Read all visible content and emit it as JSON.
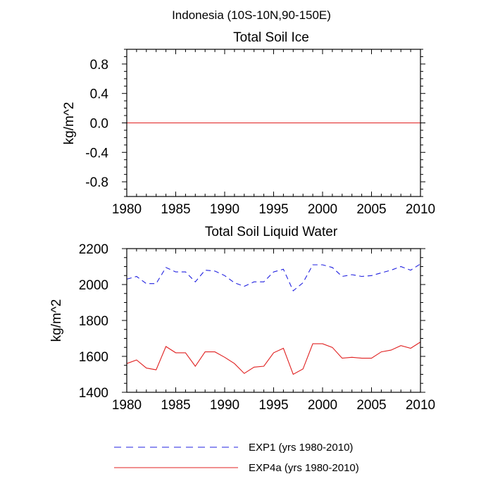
{
  "figure_title": "Indonesia (10S-10N,90-150E)",
  "legend": [
    {
      "label": "EXP1 (yrs 1980-2010)",
      "color": "#2020e0",
      "style": "dashed"
    },
    {
      "label": "EXP4a (yrs 1980-2010)",
      "color": "#e02020",
      "style": "solid"
    }
  ],
  "chart_data": [
    {
      "type": "line",
      "title": "Total Soil Ice",
      "xlabel": "",
      "ylabel": "kg/m^2",
      "xlim": [
        1980,
        2010
      ],
      "ylim": [
        -1.0,
        1.0
      ],
      "xticks": [
        1980,
        1985,
        1990,
        1995,
        2000,
        2005,
        2010
      ],
      "yticks": [
        -0.8,
        -0.4,
        0.0,
        0.4,
        0.8
      ],
      "ytick_labels": [
        "-0.8",
        "-0.4",
        "0.0",
        "0.4",
        "0.8"
      ],
      "x": [
        1980,
        1981,
        1982,
        1983,
        1984,
        1985,
        1986,
        1987,
        1988,
        1989,
        1990,
        1991,
        1992,
        1993,
        1994,
        1995,
        1996,
        1997,
        1998,
        1999,
        2000,
        2001,
        2002,
        2003,
        2004,
        2005,
        2006,
        2007,
        2008,
        2009,
        2010
      ],
      "series": [
        {
          "name": "EXP1 (yrs 1980-2010)",
          "color": "#2020e0",
          "style": "dashed",
          "values": [
            0,
            0,
            0,
            0,
            0,
            0,
            0,
            0,
            0,
            0,
            0,
            0,
            0,
            0,
            0,
            0,
            0,
            0,
            0,
            0,
            0,
            0,
            0,
            0,
            0,
            0,
            0,
            0,
            0,
            0,
            0
          ]
        },
        {
          "name": "EXP4a (yrs 1980-2010)",
          "color": "#e02020",
          "style": "solid",
          "values": [
            0,
            0,
            0,
            0,
            0,
            0,
            0,
            0,
            0,
            0,
            0,
            0,
            0,
            0,
            0,
            0,
            0,
            0,
            0,
            0,
            0,
            0,
            0,
            0,
            0,
            0,
            0,
            0,
            0,
            0,
            0
          ]
        }
      ]
    },
    {
      "type": "line",
      "title": "Total Soil Liquid Water",
      "xlabel": "",
      "ylabel": "kg/m^2",
      "xlim": [
        1980,
        2010
      ],
      "ylim": [
        1400,
        2200
      ],
      "xticks": [
        1980,
        1985,
        1990,
        1995,
        2000,
        2005,
        2010
      ],
      "yticks": [
        1400,
        1600,
        1800,
        2000,
        2200
      ],
      "ytick_labels": [
        "1400",
        "1600",
        "1800",
        "2000",
        "2200"
      ],
      "x": [
        1980,
        1981,
        1982,
        1983,
        1984,
        1985,
        1986,
        1987,
        1988,
        1989,
        1990,
        1991,
        1992,
        1993,
        1994,
        1995,
        1996,
        1997,
        1998,
        1999,
        2000,
        2001,
        2002,
        2003,
        2004,
        2005,
        2006,
        2007,
        2008,
        2009,
        2010
      ],
      "series": [
        {
          "name": "EXP1 (yrs 1980-2010)",
          "color": "#2020e0",
          "style": "dashed",
          "values": [
            2030,
            2045,
            2005,
            2005,
            2095,
            2070,
            2070,
            2015,
            2080,
            2075,
            2050,
            2010,
            1990,
            2015,
            2015,
            2070,
            2085,
            1965,
            2010,
            2110,
            2110,
            2095,
            2045,
            2055,
            2045,
            2050,
            2065,
            2080,
            2100,
            2080,
            2115
          ]
        },
        {
          "name": "EXP4a (yrs 1980-2010)",
          "color": "#e02020",
          "style": "solid",
          "values": [
            1560,
            1580,
            1535,
            1525,
            1655,
            1620,
            1620,
            1545,
            1625,
            1625,
            1595,
            1560,
            1505,
            1540,
            1545,
            1620,
            1645,
            1500,
            1530,
            1670,
            1670,
            1650,
            1590,
            1595,
            1590,
            1590,
            1625,
            1635,
            1660,
            1645,
            1680
          ]
        }
      ]
    }
  ]
}
